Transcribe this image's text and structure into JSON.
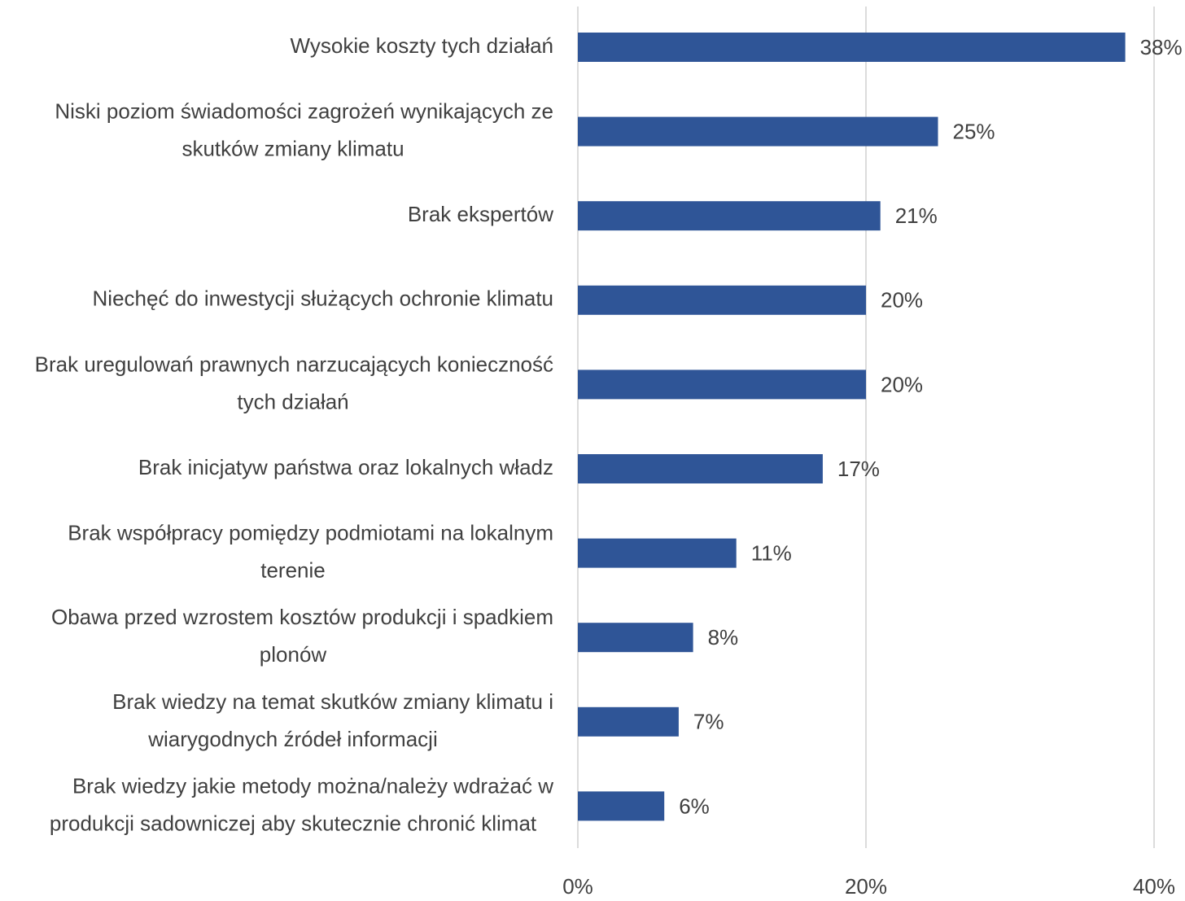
{
  "chart_data": {
    "type": "bar",
    "orientation": "horizontal",
    "categories": [
      "Wysokie koszty tych działań",
      "Niski poziom świadomości zagrożeń  wynikających ze\nskutków zmiany klimatu",
      "Brak ekspertów",
      "Niechęć do inwestycji służących ochronie klimatu",
      "Brak uregulowań prawnych narzucających konieczność\ntych działań",
      "Brak inicjatyw państwa oraz lokalnych władz",
      "Brak współpracy pomiędzy podmiotami na lokalnym\nterenie",
      "Obawa przed wzrostem kosztów produkcji i spadkiem\nplonów",
      "Brak wiedzy na temat skutków zmiany klimatu i\nwiarygodnych źródeł informacji",
      "Brak wiedzy jakie metody można/należy wdrażać w\nprodukcji sadowniczej aby skutecznie chronić klimat"
    ],
    "values": [
      38,
      25,
      21,
      20,
      20,
      17,
      11,
      8,
      7,
      6
    ],
    "value_labels": [
      "38%",
      "25%",
      "21%",
      "20%",
      "20%",
      "17%",
      "11%",
      "8%",
      "7%",
      "6%"
    ],
    "color": "#2f5597",
    "xlim": [
      0,
      40
    ],
    "xticks": [
      {
        "value": 0,
        "label": "0%"
      },
      {
        "value": 20,
        "label": "20%"
      },
      {
        "value": 40,
        "label": "40%"
      }
    ],
    "grid": true
  }
}
